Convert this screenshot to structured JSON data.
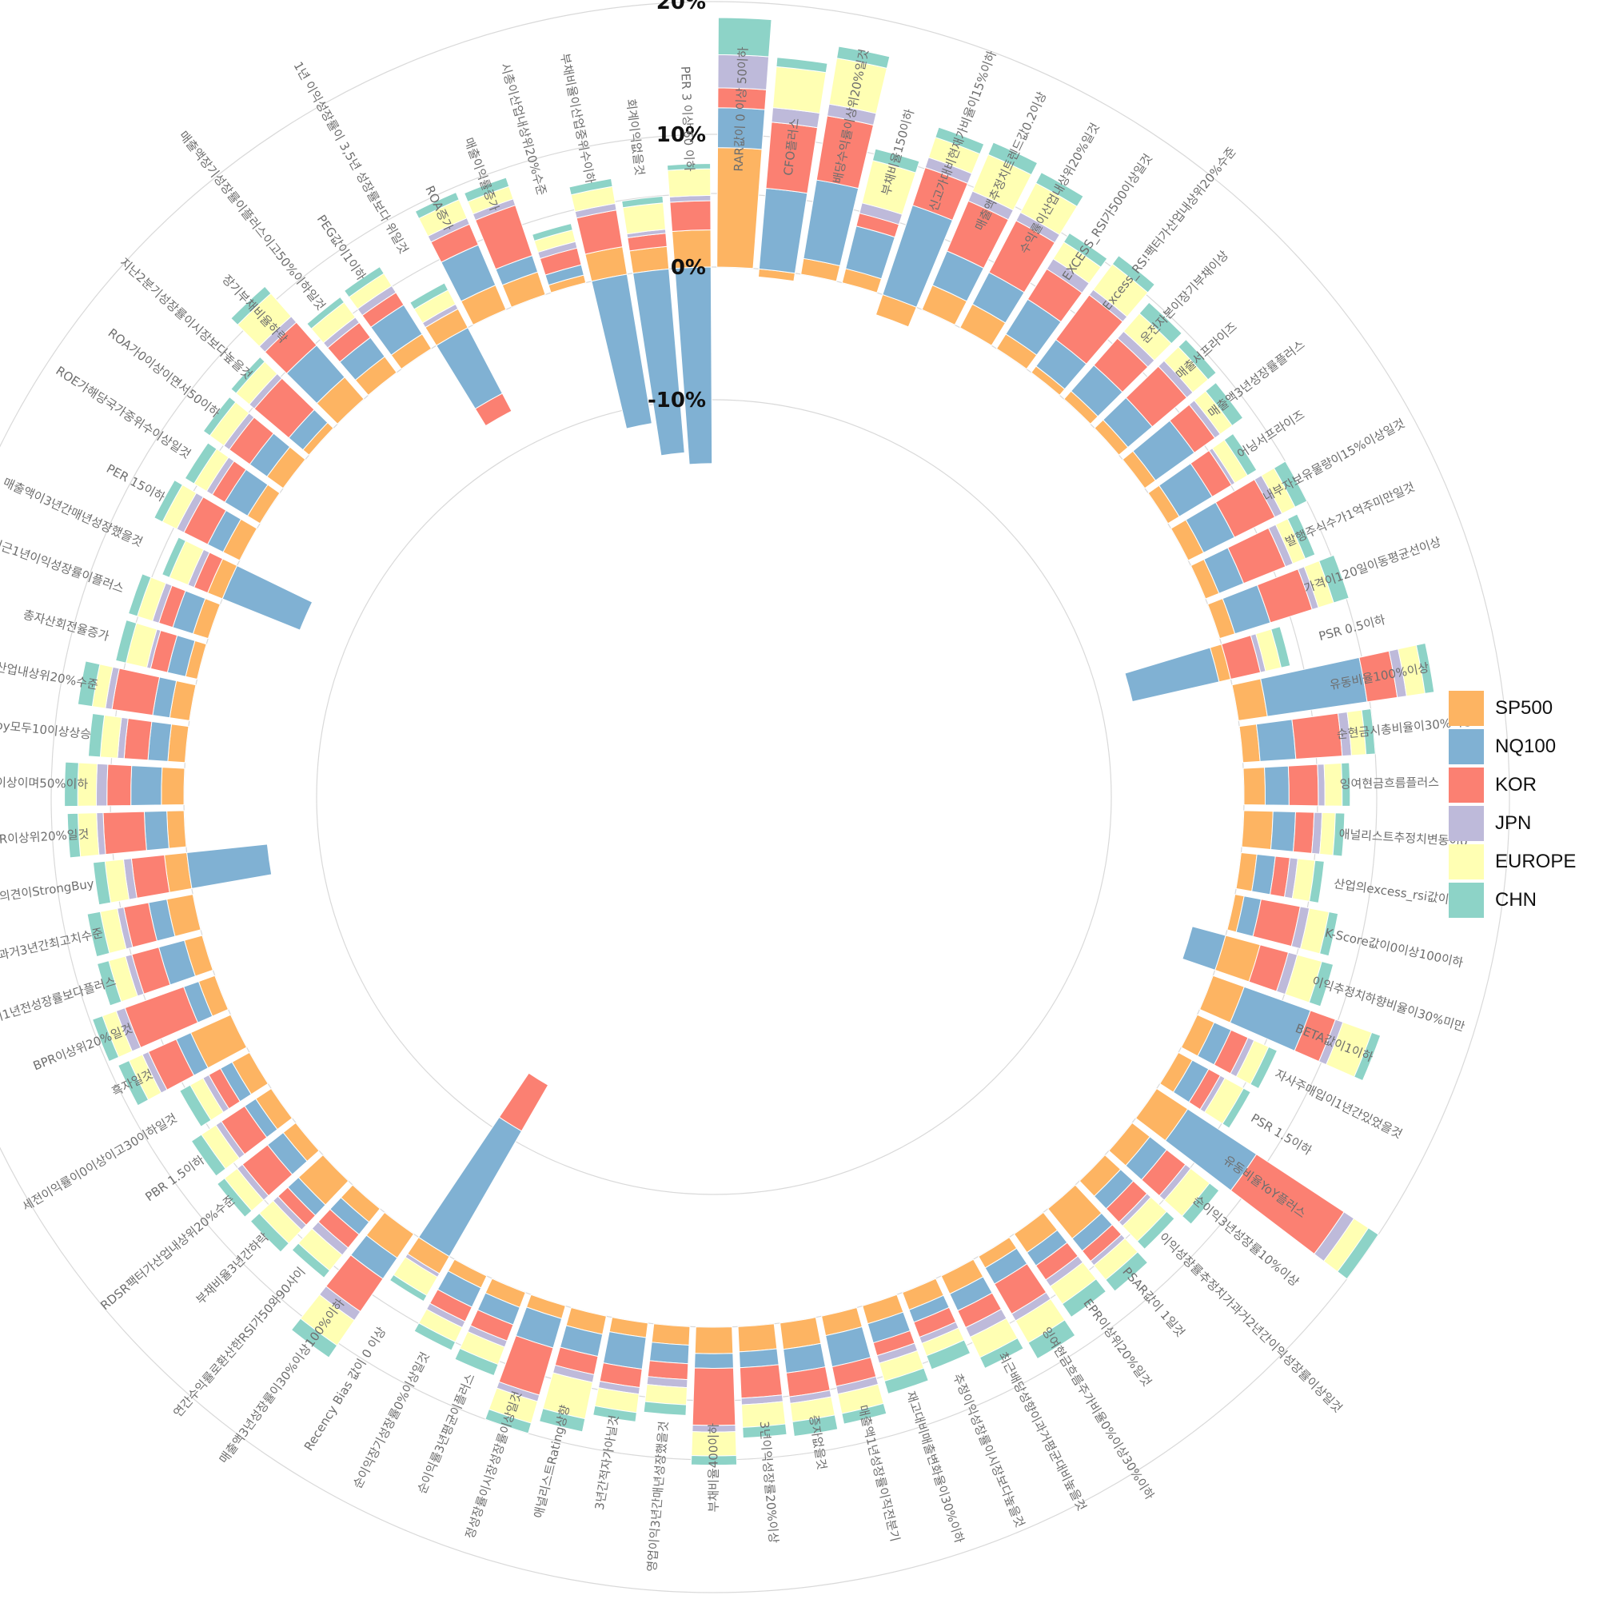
{
  "chart_data": {
    "type": "bar",
    "subtype": "circular stacked bar",
    "title": "",
    "xlabel": "",
    "ylabel": "",
    "ylim": [
      -18,
      22
    ],
    "grid": true,
    "legend_position": "right",
    "radial_ticks": [
      {
        "value": 20,
        "label": "20%"
      },
      {
        "value": 10,
        "label": "10%"
      },
      {
        "value": 0,
        "label": "0%"
      },
      {
        "value": -10,
        "label": "-10%"
      }
    ],
    "series_colors": [
      "#fdb462",
      "#80b1d3",
      "#fb8072",
      "#bebada",
      "#ffffb3",
      "#8dd3c7"
    ],
    "categories": [
      "RAR값이 0 이상 50이하",
      "CFO플러스",
      "배당수익률이상위20%일것",
      "부채비율150이하",
      "신고가대비현재가비율이15%이하",
      "매출액추정치트렌드값0.2이상",
      "수익률이산업내상위20%일것",
      "EXCESS_RSI가500이상일것",
      "Excess_RS!팩터가산업내상위20%수준",
      "운전자본이장기부채이상",
      "매출서프라이즈",
      "매출액3년성장률플러스",
      "어닝서프라이즈",
      "내부자보유물량이15%이상일것",
      "발행주식수가1억주미만일것",
      "가격이120일이동평균선이상",
      "PSR 0.5이하",
      "유동비율100%이상",
      "순현금시총비율이30%이상",
      "잉여현금흐름플러스",
      "애널리스트추정치변동이0",
      "산업의excess_rsi값이해당",
      "K-Score값이0이상100이하",
      "이익추정치하향비율이30%미만",
      "BETA값이1이하",
      "자사주매입이1년간있었을것",
      "PSR 1.5이하",
      "유동비율YoY플러스",
      "순이익3년성장률10%이상",
      "이익성장률추정치가과거2년간이익성장률이상일것",
      "PSAR값이 1일것",
      "EPR이상위20%일것",
      "잉여현금흐름주가비율0%이상30%이하",
      "최근배당성향이과거평균대비높을것",
      "추정이익성장률이시장보다높을것",
      "재고대비매출변화율이30%이하",
      "매출액1년성장률이직전분기",
      "증자없을것",
      "3년이익성장률20%이상",
      "부채비율400이하",
      "영업이익3년간매년성장했을것",
      "3년간적자가아닐것",
      "애널리스트Rating상향",
      "정성장률이시장성장률이상일것",
      "순이익률3년평균이플러스",
      "순이익장기성장률0%이상일것",
      "Recency Bias 값이 0 이상",
      "매출액3년성장률이30%이상100%이하",
      "연간수익률로환산한RSI가50와90사이",
      "부채비율3년간하락",
      "RDSR팩터가산업내상위20%수준",
      "PBR 1.5이하",
      "세전이익률이0이상이고30이하일것",
      "흑자일것",
      "BPR이상위20%일것",
      "성장률이1년전성장률보다플러스",
      "ROE값이과거3년간최고치수준",
      "애널리스트의견이StrongBuy",
      "CPR이상위20%일것",
      "중간값이상이며50%이하",
      "qoq와yoy모두10이상상승",
      "팩터가산업내상위20%수준",
      "총자산회전율증가",
      "최근1년이익성장률이플러스",
      "매출액이3년간매년성장했을것",
      "PER 15이하",
      "ROE가해당국가중위수이상일것",
      "ROA가0이상이면서50이하",
      "지난2분기성장률이시장보다높을것",
      "장기부채비율하락",
      "매출액장기성장률이플러스이고50%이하일것",
      "PEG값이1이하",
      "1년 이익성장률이 3,5년 성장률보다 위일것",
      "ROA증가",
      "매출이익률증가",
      "시총이산업내상위20%수준",
      "부채비율이산업중위수이하",
      "회계이익없을것",
      "PER 3 이상 60 이하"
    ],
    "series": [
      {
        "name": "SP500",
        "values": [
          9,
          -0.6,
          1.2,
          1.1,
          -1.6,
          2,
          2,
          1.3,
          0.6,
          0.8,
          0.9,
          1,
          1,
          1.3,
          1.1,
          1.2,
          -0.9,
          2.2,
          1.3,
          1.6,
          2.2,
          1.2,
          0.7,
          2.7,
          2.5,
          1.4,
          1.2,
          2.8,
          1.7,
          1.6,
          2.9,
          1.7,
          1,
          1.5,
          1.4,
          1.4,
          1.5,
          2,
          1.9,
          2,
          1.4,
          1.1,
          1.4,
          1,
          1.2,
          1,
          1.5,
          2.2,
          1.3,
          2.5,
          1.2,
          1.4,
          1.5,
          3.3,
          1.3,
          1.4,
          2,
          1.7,
          1.3,
          1.7,
          1.3,
          1.5,
          0.9,
          1.2,
          1.2,
          1.4,
          1.1,
          1.5,
          0.6,
          2.2,
          1.5,
          1.3,
          1.6,
          2,
          1.8,
          0.6,
          2.1,
          1.7,
          2.8
        ]
      },
      {
        "name": "NQ100",
        "values": [
          3,
          6.1,
          6,
          3.3,
          7.1,
          2.8,
          2.7,
          3.1,
          2.5,
          2.6,
          2.4,
          3.6,
          2.9,
          2.6,
          2,
          2.8,
          -6.7,
          7.6,
          2.7,
          1.8,
          1.7,
          1.4,
          1.3,
          -2.6,
          5.3,
          1.4,
          1.4,
          6.2,
          1.6,
          1.3,
          1.2,
          1.2,
          1.4,
          1.4,
          1,
          1.5,
          2.4,
          1.8,
          1.2,
          1.1,
          1.4,
          2.4,
          1.7,
          2.3,
          1.4,
          1.6,
          -10.9,
          1.9,
          1.2,
          1.1,
          1.5,
          1,
          1,
          1.2,
          1.2,
          2,
          1.4,
          -6.1,
          1.7,
          2.3,
          1.5,
          1.3,
          1.4,
          1.6,
          -6.3,
          1.3,
          2,
          1.6,
          1.4,
          3.2,
          1.8,
          2.6,
          -5.6,
          3.3,
          1.3,
          0.8,
          -11.4,
          -13.9,
          -14.8
        ]
      },
      {
        "name": "KOR",
        "values": [
          1.5,
          5,
          4.9,
          1,
          3,
          4.1,
          4.4,
          2.7,
          4.2,
          2.7,
          3.4,
          1.9,
          1.7,
          3.4,
          3.4,
          3.3,
          2.3,
          2.3,
          3.5,
          2.2,
          1.4,
          1.1,
          3,
          2.2,
          2,
          1.4,
          1,
          7.9,
          1.8,
          1.4,
          1,
          1.3,
          2.6,
          1.4,
          1.2,
          1,
          1.5,
          1.8,
          2.3,
          4.3,
          1.2,
          1.4,
          1.4,
          3.7,
          1.3,
          1.2,
          -4,
          3,
          1.3,
          1,
          2.4,
          2.1,
          1,
          2.3,
          4.7,
          2.1,
          1.9,
          2.5,
          3.1,
          1.8,
          1.8,
          3.1,
          1.3,
          1.1,
          1.1,
          2,
          1.1,
          1.9,
          3.4,
          2.3,
          1.4,
          1.1,
          -1.5,
          1.7,
          4,
          1.3,
          2.8,
          1,
          2.2
        ]
      },
      {
        "name": "JPN",
        "values": [
          2.5,
          1.1,
          0.9,
          0.8,
          0.8,
          0.8,
          0.7,
          0.9,
          0.5,
          0.7,
          0.6,
          0.5,
          0.3,
          0.6,
          0.6,
          0.5,
          0.4,
          0.7,
          0.7,
          0.5,
          0.6,
          0.6,
          0.7,
          0.7,
          0.6,
          0.5,
          0.4,
          0.9,
          0.5,
          0.4,
          0.4,
          0.6,
          0.6,
          0.8,
          0.5,
          0.6,
          0.6,
          0.5,
          0.5,
          0.5,
          0.6,
          0.5,
          0.6,
          0.5,
          0.5,
          0.5,
          0.3,
          0.8,
          0.7,
          0.5,
          0.5,
          0.5,
          0.5,
          0.5,
          0.7,
          0.5,
          0.5,
          0.6,
          0.5,
          0.8,
          0.5,
          0.5,
          0.3,
          0.5,
          0.5,
          0.6,
          0.5,
          0.5,
          0.5,
          0.6,
          0.5,
          0.6,
          0.4,
          0.5,
          0.5,
          0.5,
          0.5,
          0.3,
          0.4
        ]
      },
      {
        "name": "EUROPE",
        "values": [
          0,
          3.1,
          3.5,
          3.3,
          1.6,
          3,
          2.5,
          1.5,
          2.4,
          1.8,
          1.5,
          1.1,
          1.1,
          1.1,
          1,
          1.2,
          1.2,
          1.4,
          1.1,
          1.3,
          1,
          1.3,
          1.5,
          1.9,
          2.3,
          1.2,
          1.6,
          1.3,
          1.8,
          1.6,
          1.4,
          1.6,
          1.9,
          1.7,
          1,
          1.4,
          1.5,
          1.4,
          1.7,
          1.8,
          1.3,
          1.4,
          2.8,
          1.7,
          1.4,
          1.2,
          1.6,
          2.3,
          1.5,
          1.4,
          1.2,
          1.3,
          1.1,
          1.1,
          1.1,
          1.3,
          1.3,
          1.4,
          1.4,
          1.4,
          1.3,
          1,
          1.6,
          1.2,
          1.5,
          1.2,
          1.1,
          1.3,
          1.3,
          2.3,
          1.4,
          1.1,
          1.2,
          1.5,
          1,
          0.9,
          1.3,
          2,
          2
        ]
      },
      {
        "name": "CHN",
        "values": [
          2.8,
          0.7,
          0.9,
          0.9,
          0.8,
          1,
          0.9,
          0.8,
          0.8,
          1.1,
          0.8,
          1,
          0.8,
          1,
          0.8,
          1.2,
          0.7,
          0.7,
          0.7,
          0.6,
          0.7,
          0.7,
          0.7,
          0.9,
          0.7,
          0.7,
          0.6,
          0.9,
          0.9,
          0.8,
          1.1,
          1.2,
          1.4,
          0.9,
          1.1,
          1,
          0.8,
          1.1,
          0.8,
          0.7,
          0.8,
          0.7,
          1,
          0.8,
          0.9,
          0.7,
          0.5,
          1.1,
          0.7,
          0.9,
          0.7,
          0.9,
          0.9,
          0.9,
          0.8,
          0.9,
          1,
          0.9,
          0.8,
          1,
          0.9,
          1.1,
          0.8,
          0.7,
          0.6,
          0.7,
          0.8,
          0.6,
          0.5,
          0.7,
          0.5,
          0.6,
          0.6,
          0.6,
          0.7,
          0.5,
          0.6,
          0.5,
          0.4
        ]
      }
    ]
  }
}
